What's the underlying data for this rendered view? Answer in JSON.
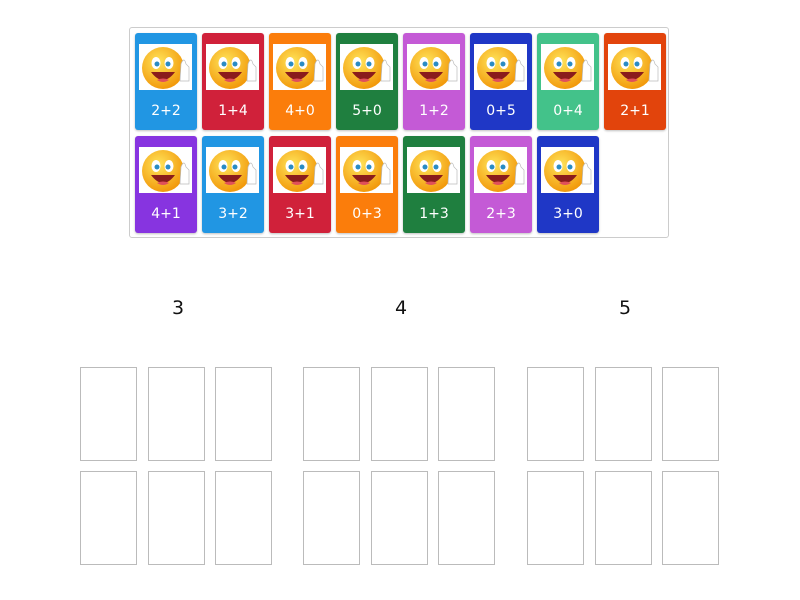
{
  "cards": [
    {
      "label": "2+2",
      "color": "#2196e3",
      "icon": "smiley-thumbs-up-icon"
    },
    {
      "label": "1+4",
      "color": "#d0213a",
      "icon": "smiley-thumbs-up-icon"
    },
    {
      "label": "4+0",
      "color": "#fb7d0b",
      "icon": "smiley-thumbs-up-icon"
    },
    {
      "label": "5+0",
      "color": "#1f7f3f",
      "icon": "smiley-thumbs-up-icon"
    },
    {
      "label": "1+2",
      "color": "#c45ad6",
      "icon": "smiley-thumbs-up-icon"
    },
    {
      "label": "0+5",
      "color": "#1f37c6",
      "icon": "smiley-thumbs-up-icon"
    },
    {
      "label": "0+4",
      "color": "#43c28a",
      "icon": "smiley-thumbs-up-icon"
    },
    {
      "label": "2+1",
      "color": "#e2440c",
      "icon": "smiley-thumbs-up-icon"
    },
    {
      "label": "4+1",
      "color": "#8734e0",
      "icon": "smiley-thumbs-up-icon"
    },
    {
      "label": "3+2",
      "color": "#2196e3",
      "icon": "smiley-thumbs-up-icon"
    },
    {
      "label": "3+1",
      "color": "#d0213a",
      "icon": "smiley-thumbs-up-icon"
    },
    {
      "label": "0+3",
      "color": "#fb7d0b",
      "icon": "smiley-thumbs-up-icon"
    },
    {
      "label": "1+3",
      "color": "#1f7f3f",
      "icon": "smiley-thumbs-up-icon"
    },
    {
      "label": "2+3",
      "color": "#c45ad6",
      "icon": "smiley-thumbs-up-icon"
    },
    {
      "label": "3+0",
      "color": "#1f37c6",
      "icon": "smiley-thumbs-up-icon"
    }
  ],
  "groups": [
    {
      "heading": "3",
      "slots": 6
    },
    {
      "heading": "4",
      "slots": 6
    },
    {
      "heading": "5",
      "slots": 6
    }
  ]
}
